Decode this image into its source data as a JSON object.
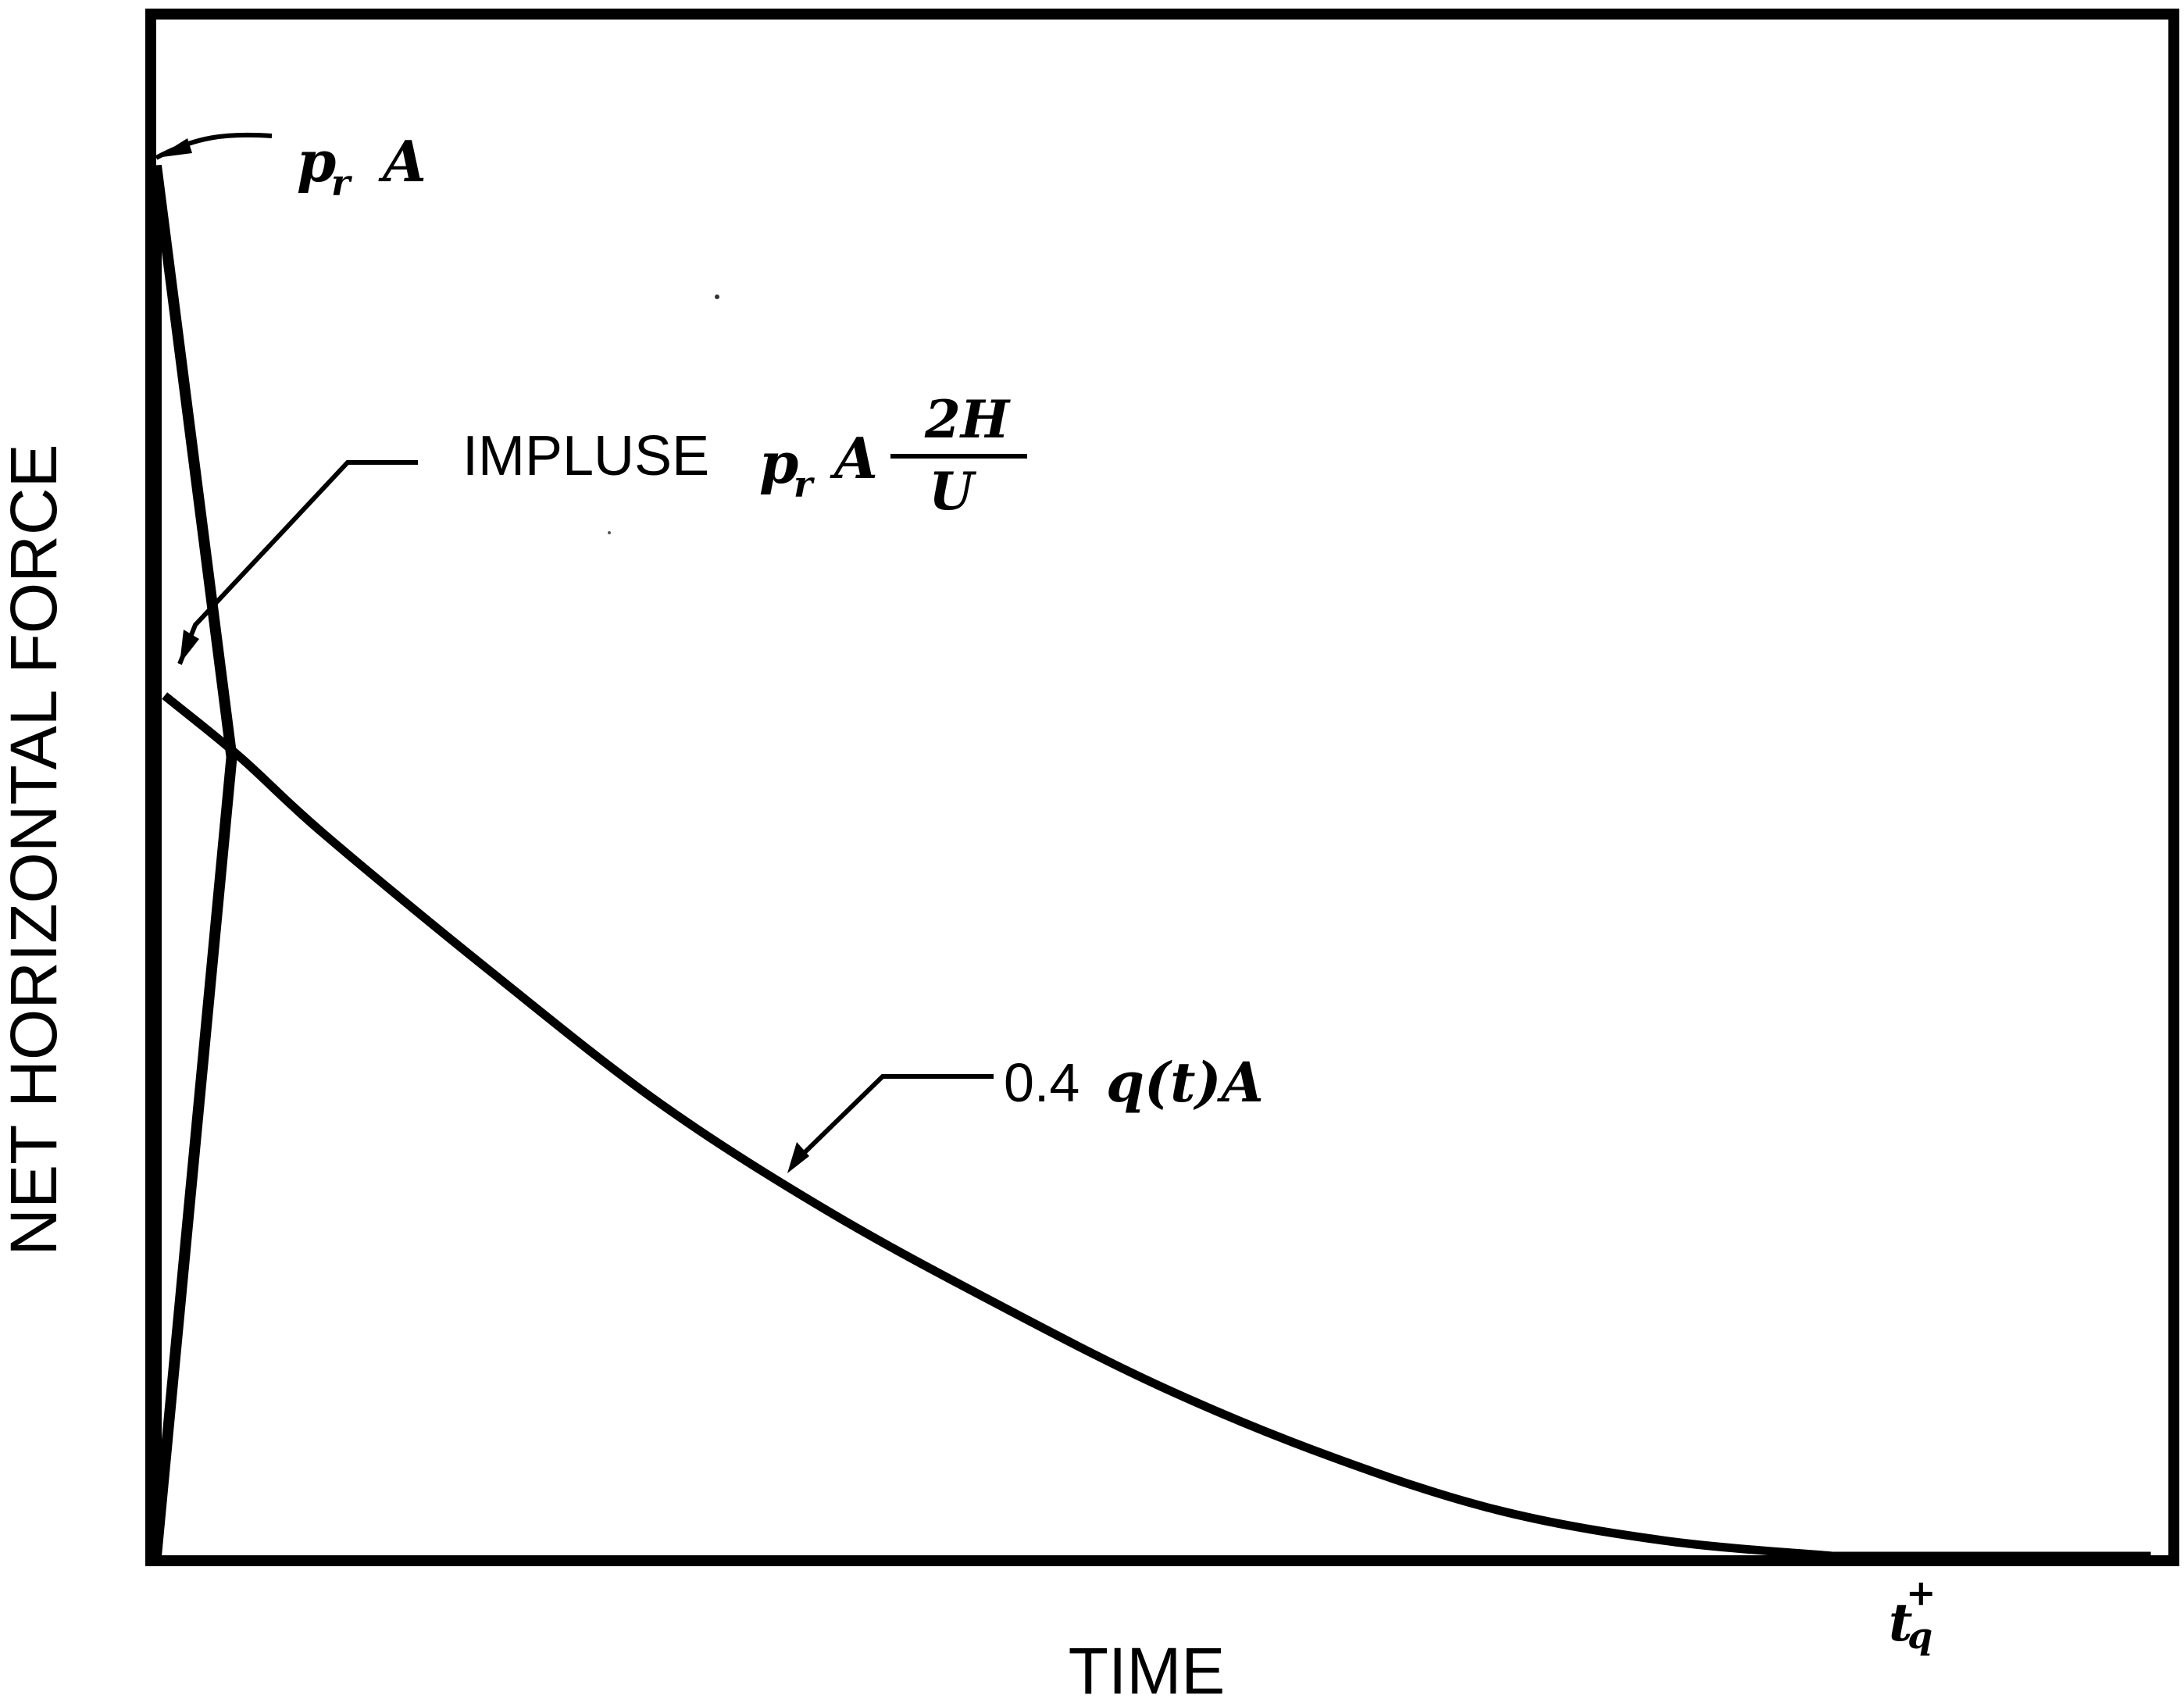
{
  "chart_data": {
    "type": "line",
    "xlabel": "TIME",
    "ylabel": "NET HORIZONTAL FORCE",
    "grid": false,
    "legend": "none",
    "xlim": [
      0,
      1.2
    ],
    "ylim": [
      0,
      1
    ],
    "x_ticks": [
      {
        "value": 1.0,
        "label": "t",
        "superscript": "+",
        "subscript": "q"
      }
    ],
    "series": [
      {
        "kind": "triangle",
        "x": [
          0,
          0,
          0.045
        ],
        "y": [
          0,
          0.905,
          0.52
        ]
      },
      {
        "kind": "curve",
        "x": [
          0.005,
          0.05,
          0.1,
          0.2,
          0.3,
          0.4,
          0.5,
          0.6,
          0.7,
          0.8,
          0.9,
          1.0
        ],
        "y": [
          0.56,
          0.52,
          0.47,
          0.38,
          0.295,
          0.225,
          0.165,
          0.11,
          0.065,
          0.03,
          0.01,
          0.0
        ]
      }
    ],
    "annotations": [
      {
        "name": "peak",
        "lead": "p",
        "sub": "r",
        "tail": "A"
      },
      {
        "name": "impulse",
        "text": "IMPLUSE",
        "lead": "p",
        "sub": "r",
        "tail": "A",
        "numerator": "2H",
        "denominator": "U"
      },
      {
        "name": "drag",
        "prefix": "0.4",
        "expr": "q(t)A"
      }
    ]
  }
}
